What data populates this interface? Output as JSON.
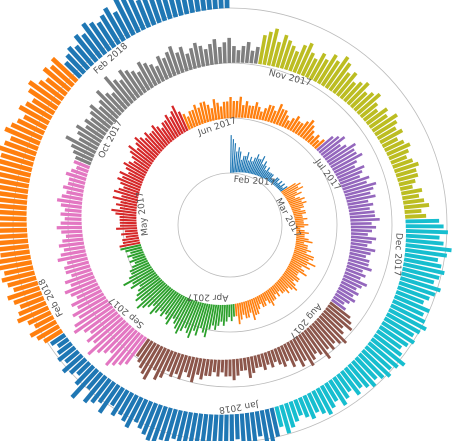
{
  "chart_data": {
    "type": "bar",
    "layout": "radial-spiral",
    "rings": 3,
    "segments": [
      {
        "label": "Feb 2017",
        "color": "#1f77b4",
        "values": [
          9,
          8,
          7,
          5,
          6,
          5,
          3,
          4,
          4,
          5,
          3,
          4,
          3,
          4,
          5,
          4,
          4,
          5,
          3,
          4,
          3,
          2,
          3,
          2,
          2,
          2,
          2,
          1,
          1,
          2,
          2,
          1,
          2,
          1,
          2,
          1,
          2
        ]
      },
      {
        "label": "Mar 2017",
        "color": "#ff7f0e",
        "values": [
          4,
          5,
          4,
          5,
          3,
          4,
          2,
          3,
          4,
          3,
          4,
          3,
          3,
          2,
          3,
          3,
          2,
          2,
          3,
          2,
          2,
          3,
          2,
          1,
          2,
          3,
          2,
          2,
          3,
          4,
          2,
          3,
          3,
          4,
          3,
          5,
          5,
          4,
          6,
          4,
          5,
          3,
          4,
          5,
          3,
          3,
          4,
          4,
          3,
          4,
          5,
          4,
          3,
          4,
          3,
          3,
          2,
          3,
          2,
          3,
          3,
          4,
          3,
          2,
          3,
          3,
          2,
          3,
          4,
          4,
          5,
          3,
          4,
          4,
          3,
          4,
          5,
          3
        ]
      },
      {
        "label": "Apr 2017",
        "color": "#2ca02c",
        "values": [
          3,
          4,
          3,
          4,
          5,
          4,
          5,
          6,
          5,
          6,
          8,
          7,
          6,
          8,
          7,
          9,
          8,
          7,
          8,
          9,
          8,
          7,
          6,
          8,
          7,
          6,
          7,
          6,
          7,
          8,
          6,
          7,
          8,
          9,
          7,
          8,
          7,
          6,
          5,
          7,
          6,
          8,
          6,
          5,
          5,
          4,
          3,
          4,
          3,
          4,
          3,
          4,
          5
        ]
      },
      {
        "label": "May 2017",
        "color": "#d62728",
        "values": [
          5,
          4,
          4,
          3,
          4,
          3,
          5,
          4,
          4,
          4,
          4,
          5,
          6,
          4,
          5,
          4,
          6,
          4,
          6,
          5,
          4,
          5,
          6,
          5,
          6,
          4,
          5,
          6,
          5,
          4,
          5,
          6,
          7,
          5,
          6,
          7,
          6,
          5,
          6,
          5,
          5,
          6,
          5,
          4,
          5,
          5,
          6,
          5,
          6,
          7,
          5
        ]
      },
      {
        "label": "Jun 2017",
        "color": "#ff7f0e",
        "values": [
          4,
          3,
          4,
          4,
          5,
          4,
          5,
          5,
          4,
          3,
          5,
          4,
          3,
          4,
          4,
          5,
          4,
          4,
          5,
          3,
          4,
          3,
          3,
          4,
          3,
          2,
          3,
          4,
          4,
          3,
          5,
          4,
          4,
          3,
          2,
          3,
          4,
          3,
          3,
          4,
          5,
          4,
          3,
          2,
          3,
          2,
          3
        ]
      },
      {
        "label": "Jul 2017",
        "color": "#9467bd",
        "values": [
          5,
          6,
          7,
          5,
          6,
          8,
          7,
          7,
          8,
          6,
          5,
          7,
          6,
          5,
          7,
          6,
          8,
          7,
          6,
          7,
          5,
          6,
          5,
          6,
          6,
          7,
          5,
          6,
          5,
          4,
          6,
          5,
          4,
          6,
          5,
          4,
          5,
          5,
          6,
          4,
          5,
          4,
          6,
          5,
          4,
          5,
          4,
          5,
          4,
          3,
          4
        ]
      },
      {
        "label": "Aug 2017",
        "color": "#8c564b",
        "values": [
          6,
          7,
          8,
          6,
          7,
          9,
          8,
          7,
          8,
          7,
          9,
          7,
          6,
          7,
          8,
          6,
          7,
          5,
          6,
          4,
          5,
          4,
          3,
          4,
          3,
          4,
          3,
          3,
          4,
          5,
          3,
          3,
          4,
          5,
          4,
          4,
          3,
          4,
          3,
          4,
          4,
          5,
          4,
          6,
          5,
          4,
          6,
          5,
          6,
          5,
          7,
          8,
          6,
          9,
          8,
          7,
          6,
          5
        ]
      },
      {
        "label": "Sep 2017",
        "color": "#e377c2",
        "values": [
          8,
          9,
          10,
          11,
          8,
          9,
          10,
          12,
          9,
          10,
          8,
          9,
          11,
          10,
          8,
          9,
          7,
          8,
          6,
          7,
          8,
          6,
          7,
          5,
          6,
          6,
          5,
          7,
          6,
          5,
          6,
          5,
          4,
          5,
          6,
          5,
          4,
          5,
          4,
          5,
          6,
          5,
          4,
          5,
          4,
          4,
          5,
          4,
          3,
          4
        ]
      },
      {
        "label": "Oct 2017",
        "color": "#7f7f7f",
        "values": [
          4,
          5,
          6,
          8,
          5,
          6,
          7,
          5,
          6,
          5,
          6,
          7,
          5,
          6,
          8,
          6,
          5,
          9,
          7,
          6,
          8,
          7,
          6,
          5,
          7,
          6,
          5,
          4,
          6,
          5,
          6,
          7,
          5,
          6,
          4,
          5,
          6,
          5,
          4,
          5,
          6,
          4,
          5,
          6,
          4,
          3,
          4,
          5,
          3,
          4
        ]
      },
      {
        "label": "Nov 2017",
        "color": "#bcbd22",
        "values": [
          7,
          8,
          9,
          6,
          8,
          7,
          6,
          5,
          7,
          8,
          6,
          5,
          7,
          6,
          8,
          7,
          9,
          8,
          6,
          7,
          5,
          6,
          7,
          5,
          6,
          7,
          5,
          4,
          6,
          5,
          7,
          6,
          5,
          6,
          4,
          5,
          6,
          5,
          4,
          5,
          6,
          5,
          5,
          4,
          3,
          5,
          4,
          5,
          6,
          4,
          5
        ]
      },
      {
        "label": "Dec 2017",
        "color": "#17becf",
        "values": [
          8,
          9,
          10,
          8,
          9,
          11,
          10,
          8,
          9,
          10,
          9,
          8,
          10,
          9,
          8,
          7,
          9,
          8,
          9,
          10,
          9,
          8,
          9,
          8,
          7,
          8,
          10,
          9,
          8,
          9,
          8,
          7,
          8,
          7,
          6,
          7,
          5,
          6,
          7,
          5,
          6,
          7,
          6,
          5,
          6,
          5,
          4,
          5,
          6,
          7,
          5
        ]
      },
      {
        "label": "Jan 2018",
        "color": "#1f77b4",
        "values": [
          7,
          8,
          9,
          6,
          8,
          9,
          7,
          6,
          8,
          9,
          10,
          8,
          9,
          7,
          8,
          10,
          9,
          8,
          7,
          9,
          8,
          10,
          9,
          8,
          7,
          6,
          8,
          7,
          6,
          7,
          5,
          8,
          6,
          7,
          8,
          5,
          9,
          6,
          4,
          5,
          6,
          4,
          5,
          4,
          3,
          4
        ]
      },
      {
        "label": "Feb 2018",
        "color": "#ff7f0e",
        "values": [
          5,
          6,
          7,
          5,
          6,
          8,
          7,
          6,
          7,
          8,
          6,
          7,
          8,
          7,
          9,
          8,
          7,
          8,
          9,
          8,
          7,
          9,
          8,
          7,
          9,
          8,
          10,
          9,
          8,
          9,
          10,
          9,
          8,
          9,
          8,
          7,
          9,
          8,
          7,
          6,
          8,
          7,
          6,
          8,
          9,
          7,
          6,
          8,
          7,
          8
        ]
      },
      {
        "label": "Feb 2018",
        "color": "#1f77b4",
        "values": [
          5,
          6,
          7,
          6,
          8,
          7,
          9,
          8,
          7,
          8,
          9,
          7,
          10,
          9,
          8,
          7,
          9,
          8,
          9,
          11,
          10,
          9,
          10,
          8,
          11,
          12,
          10,
          9,
          11,
          13
        ]
      }
    ]
  }
}
